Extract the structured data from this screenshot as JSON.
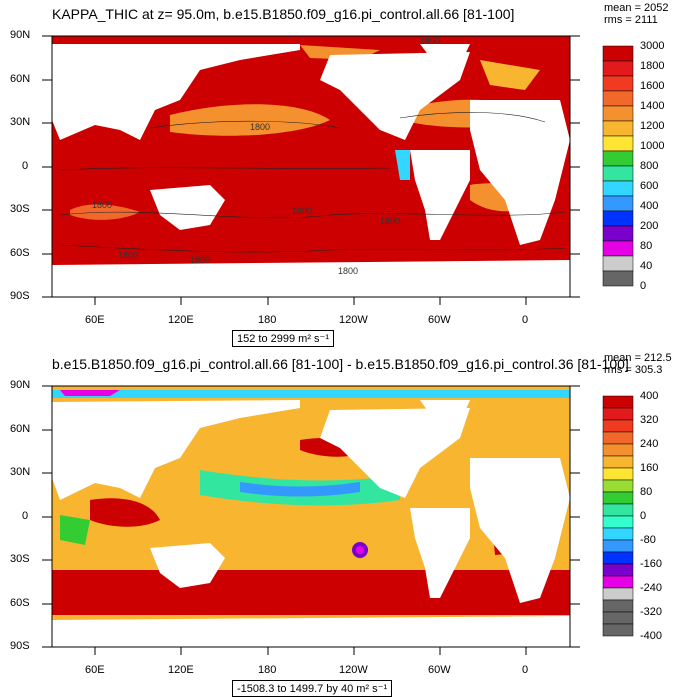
{
  "top": {
    "title": "KAPPA_THIC at z=  95.0m, b.e15.B1850.f09_g16.pi_control.all.66 [81-100]",
    "mean": "mean = 2052",
    "rms": "rms = 2111",
    "range_label": "152 to 2999 m² s⁻¹",
    "contour_labels": [
      "1800",
      "1800",
      "1800",
      "1800",
      "1800",
      "1800",
      "1800",
      "1800"
    ],
    "colorbar_labels": [
      "3000",
      "1800",
      "1600",
      "1400",
      "1200",
      "1000",
      "800",
      "600",
      "400",
      "200",
      "80",
      "40",
      "0"
    ],
    "colorbar_colors": [
      "#cc0000",
      "#e31a1c",
      "#f03b20",
      "#f2682a",
      "#f5902e",
      "#f8b530",
      "#ffe533",
      "#33cc33",
      "#33e6a0",
      "#33d6ff",
      "#3399ff",
      "#0033ff",
      "#7a00cc",
      "#e600e6",
      "#cccccc",
      "#666666"
    ]
  },
  "bottom": {
    "title": "b.e15.B1850.f09_g16.pi_control.all.66 [81-100] - b.e15.B1850.f09_g16.pi_control.36 [81-100]",
    "mean": "mean = 212.5",
    "rms": "rms = 305.3",
    "range_label": "-1508.3 to 1499.7 by 40 m² s⁻¹",
    "colorbar_labels": [
      "400",
      "320",
      "240",
      "160",
      "80",
      "0",
      "-80",
      "-160",
      "-240",
      "-320",
      "-400"
    ],
    "colorbar_colors": [
      "#cc0000",
      "#e31a1c",
      "#f03b20",
      "#f2682a",
      "#f5902e",
      "#f8b530",
      "#ffe533",
      "#99dd33",
      "#33cc33",
      "#33e6a0",
      "#33ffcc",
      "#33d6ff",
      "#3399ff",
      "#0033ff",
      "#7a00cc",
      "#e600e6",
      "#cccccc",
      "#666666",
      "#666666",
      "#666666"
    ]
  },
  "axes": {
    "lat_labels": [
      "90N",
      "60N",
      "30N",
      "0",
      "30S",
      "60S",
      "90S"
    ],
    "lon_labels": [
      "60E",
      "120E",
      "180",
      "120W",
      "60W",
      "0"
    ]
  }
}
